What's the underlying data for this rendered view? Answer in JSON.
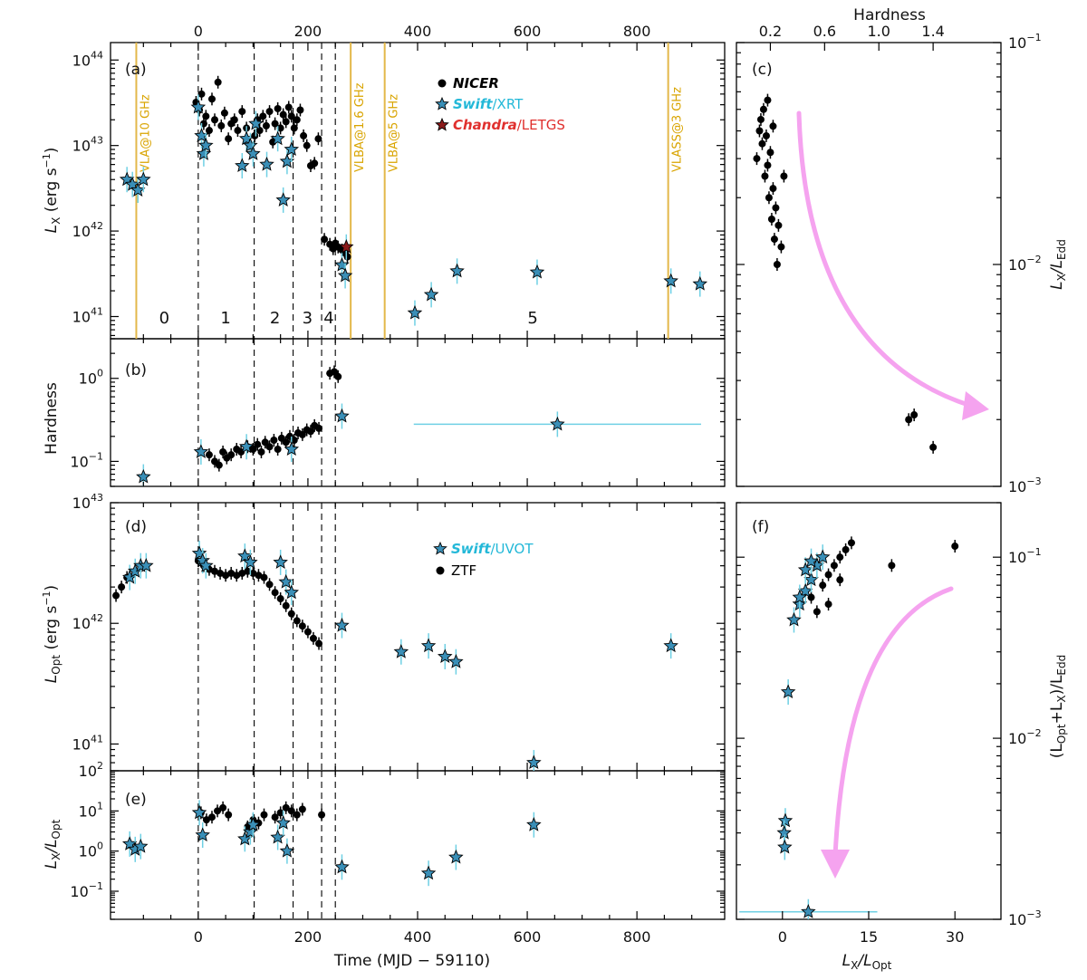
{
  "colors": {
    "nicer": "#000000",
    "swift": "#3a8fb7",
    "swift_err": "#6fd0e4",
    "chandra": "#8b1a1a",
    "radio": "#e3b84a",
    "arrow": "#f5a3ef",
    "legend_swift_text": "#23b8d8",
    "legend_chandra_text": "#e0302e"
  },
  "axes": {
    "time_label": "Time (MJD − 59110)",
    "hardness_top_label": "Hardness",
    "lx_label": "L",
    "lx_sub": "X",
    "lx_unit": " (erg s",
    "lx_unit_sup": "−1",
    "lx_unit_end": ")",
    "hard_label": "Hardness",
    "lopt_label": "L",
    "lopt_sub": "Opt",
    "lopt_unit": " (erg s",
    "lopt_unit_sup": "−1",
    "lopt_unit_end": ")",
    "ratio_label_num": "L",
    "ratio_label_num_sub": "X",
    "ratio_label_den": "/L",
    "ratio_label_den_sub": "Opt",
    "edd_label_num": "L",
    "edd_label_num_sub": "X",
    "edd_label_den": "/L",
    "edd_label_den_sub": "Edd",
    "tot_label_pre": "(L",
    "tot_label_sub1": "Opt",
    "tot_label_mid": "+L",
    "tot_label_sub2": "X",
    "tot_label_post": ")/L",
    "tot_label_sub3": "Edd",
    "f_x_label_num": "L",
    "f_x_label_num_sub": "X",
    "f_x_label_den": "/L",
    "f_x_label_den_sub": "Opt"
  },
  "legend_xray": {
    "nicer": "NICER",
    "swift_a": "Swift",
    "swift_b": "/XRT",
    "chandra_a": "Chandra",
    "chandra_b": "/LETGS"
  },
  "legend_opt": {
    "swift_a": "Swift",
    "swift_b": "/UVOT",
    "ztf": "ZTF"
  },
  "panels": {
    "a": "(a)",
    "b": "(b)",
    "c": "(c)",
    "d": "(d)",
    "e": "(e)",
    "f": "(f)"
  },
  "chart_data": [
    {
      "panel": "a",
      "type": "scatter",
      "ylabel": "L_X (erg s^-1)",
      "yscale": "log",
      "xlim": [
        -160,
        960
      ],
      "ylim": [
        5.5e+40,
        1.6e+44
      ],
      "top_axis": {
        "label": "Time (MJD − 59110)",
        "ticks": [
          0,
          200,
          400,
          600,
          800
        ]
      },
      "phase_boundaries": [
        0,
        102,
        173,
        225,
        250
      ],
      "phase_labels": [
        {
          "text": "0",
          "x": -62
        },
        {
          "text": "1",
          "x": 50
        },
        {
          "text": "2",
          "x": 140
        },
        {
          "text": "3",
          "x": 199
        },
        {
          "text": "4",
          "x": 238
        },
        {
          "text": "5",
          "x": 610
        }
      ],
      "radio_lines": [
        {
          "label": "VLA@10 GHz",
          "x": -113
        },
        {
          "label": "VLBA@1.6 GHz",
          "x": 278
        },
        {
          "label": "VLBA@5 GHz",
          "x": 340
        },
        {
          "label": "VLASS@3 GHz",
          "x": 857
        }
      ],
      "series": [
        {
          "name": "NICER",
          "marker": "circle",
          "x": [
            -4,
            2,
            6,
            10,
            14,
            20,
            25,
            30,
            36,
            42,
            48,
            55,
            60,
            66,
            72,
            80,
            88,
            95,
            103,
            108,
            112,
            118,
            124,
            130,
            136,
            140,
            145,
            150,
            155,
            160,
            165,
            170,
            175,
            180,
            186,
            192,
            198,
            205,
            212,
            219,
            230,
            240,
            246,
            250,
            255,
            262,
            268,
            272
          ],
          "y": [
            3.2e+43,
            2.6e+43,
            4e+43,
            1.8e+43,
            2.2e+43,
            1.5e+43,
            3.5e+43,
            2e+43,
            5.5e+43,
            1.7e+43,
            2.4e+43,
            1.2e+43,
            1.8e+43,
            2e+43,
            1.5e+43,
            2.5e+43,
            1.6e+43,
            1e+43,
            1.3e+43,
            2e+43,
            1.5e+43,
            2.2e+43,
            1.7e+43,
            2.5e+43,
            1.1e+43,
            1.8e+43,
            2.7e+43,
            1.6e+43,
            2.3e+43,
            1.9e+43,
            2.8e+43,
            2.2e+43,
            1.6e+43,
            2e+43,
            2.6e+43,
            1.3e+43,
            1e+43,
            5.8e+42,
            6.2e+42,
            1.2e+43,
            8e+41,
            7e+41,
            6.2e+41,
            7.2e+41,
            6.5e+41,
            6e+41,
            5.5e+41,
            5e+41
          ]
        },
        {
          "name": "Swift/XRT",
          "marker": "star",
          "x": [
            -130,
            -120,
            -110,
            -100,
            0,
            6,
            10,
            14,
            80,
            88,
            95,
            100,
            105,
            125,
            145,
            155,
            162,
            170,
            262,
            268,
            395,
            425,
            472,
            618,
            862,
            915
          ],
          "y": [
            4e+42,
            3.5e+42,
            3e+42,
            4e+42,
            2.8e+43,
            1.3e+43,
            8e+42,
            1e+43,
            5.8e+42,
            1.2e+43,
            1e+43,
            8e+42,
            1.8e+43,
            6e+42,
            1.2e+43,
            2.3e+42,
            6.5e+42,
            9e+42,
            4e+41,
            3e+41,
            1.1e+41,
            1.8e+41,
            3.4e+41,
            3.3e+41,
            2.6e+41,
            2.4e+41
          ]
        },
        {
          "name": "Chandra/LETGS",
          "marker": "star",
          "x": [
            270
          ],
          "y": [
            6.5e+41
          ]
        }
      ]
    },
    {
      "panel": "b",
      "type": "scatter",
      "ylabel": "Hardness",
      "yscale": "log",
      "xlim": [
        -160,
        960
      ],
      "ylim": [
        0.05,
        3.0
      ],
      "series": [
        {
          "name": "NICER",
          "marker": "circle",
          "x": [
            20,
            30,
            38,
            45,
            52,
            60,
            70,
            78,
            90,
            100,
            108,
            115,
            122,
            130,
            138,
            145,
            152,
            160,
            167,
            175,
            182,
            190,
            198,
            205,
            212,
            220,
            240,
            248,
            255
          ],
          "y": [
            0.12,
            0.1,
            0.09,
            0.13,
            0.11,
            0.12,
            0.14,
            0.13,
            0.15,
            0.14,
            0.16,
            0.13,
            0.17,
            0.15,
            0.18,
            0.14,
            0.19,
            0.17,
            0.2,
            0.18,
            0.22,
            0.21,
            0.24,
            0.23,
            0.27,
            0.25,
            1.15,
            1.2,
            1.05
          ]
        },
        {
          "name": "Swift/XRT",
          "marker": "star",
          "x": [
            -100,
            5,
            88,
            170,
            262,
            655
          ],
          "y": [
            0.065,
            0.13,
            0.15,
            0.14,
            0.35,
            0.28
          ],
          "xerr": [
            0,
            0,
            0,
            0,
            0,
            262
          ]
        }
      ]
    },
    {
      "panel": "c",
      "type": "scatter",
      "top_axis": {
        "label": "Hardness",
        "ticks": [
          0.2,
          0.6,
          1.0,
          1.4
        ]
      },
      "xlim": [
        -0.05,
        1.9
      ],
      "ylabel": "L_X/L_Edd",
      "yscale": "log",
      "ylim": [
        0.001,
        0.1
      ],
      "series": [
        {
          "name": "NICER",
          "marker": "circle",
          "x": [
            0.1,
            0.12,
            0.14,
            0.16,
            0.18,
            0.2,
            0.22,
            0.24,
            0.26,
            0.28,
            0.13,
            0.15,
            0.17,
            0.19,
            0.21,
            0.23,
            0.25,
            0.18,
            0.22,
            0.3,
            1.22,
            1.26,
            1.4
          ],
          "y": [
            0.03,
            0.04,
            0.035,
            0.025,
            0.028,
            0.032,
            0.022,
            0.018,
            0.015,
            0.012,
            0.045,
            0.05,
            0.038,
            0.02,
            0.016,
            0.013,
            0.01,
            0.055,
            0.042,
            0.025,
            0.002,
            0.0021,
            0.0015
          ]
        }
      ]
    },
    {
      "panel": "d",
      "type": "scatter",
      "ylabel": "L_Opt (erg s^-1)",
      "yscale": "log",
      "xlim": [
        -160,
        960
      ],
      "ylim": [
        6e+40,
        1e+43
      ],
      "phase_boundaries": [
        0,
        102,
        173,
        225,
        250
      ],
      "series": [
        {
          "name": "ZTF",
          "marker": "circle",
          "x": [
            -150,
            -140,
            -130,
            0,
            10,
            20,
            30,
            40,
            50,
            60,
            70,
            80,
            90,
            100,
            110,
            120,
            130,
            140,
            150,
            160,
            170,
            180,
            190,
            200,
            210,
            220
          ],
          "y": [
            1.7e+42,
            2e+42,
            2.4e+42,
            3.3e+42,
            3e+42,
            2.8e+42,
            2.7e+42,
            2.6e+42,
            2.5e+42,
            2.6e+42,
            2.5e+42,
            2.6e+42,
            2.7e+42,
            2.6e+42,
            2.5e+42,
            2.4e+42,
            2.1e+42,
            1.8e+42,
            1.6e+42,
            1.4e+42,
            1.2e+42,
            1.05e+42,
            9.5e+41,
            8.5e+41,
            7.5e+41,
            6.8e+41
          ]
        },
        {
          "name": "Swift/UVOT",
          "marker": "star",
          "x": [
            -125,
            -115,
            -105,
            -95,
            2,
            8,
            14,
            85,
            95,
            150,
            160,
            170,
            262,
            370,
            420,
            450,
            470,
            612,
            862
          ],
          "y": [
            2.4e+42,
            2.7e+42,
            3e+42,
            3e+42,
            3.8e+42,
            3.3e+42,
            3e+42,
            3.6e+42,
            3.2e+42,
            3.2e+42,
            2.2e+42,
            1.8e+42,
            9.6e+41,
            5.8e+41,
            6.5e+41,
            5.3e+41,
            4.8e+41,
            7e+40,
            6.5e+41
          ]
        }
      ]
    },
    {
      "panel": "e",
      "type": "scatter",
      "xlabel": "Time (MJD − 59110)",
      "ylabel": "L_X/L_Opt",
      "yscale": "log",
      "xlim": [
        -160,
        960
      ],
      "xticks": [
        0,
        200,
        400,
        600,
        800
      ],
      "ylim": [
        0.02,
        100
      ],
      "phase_boundaries": [
        0,
        102,
        173,
        225,
        250
      ],
      "series": [
        {
          "name": "NICER",
          "marker": "circle",
          "x": [
            5,
            15,
            25,
            35,
            45,
            55,
            90,
            100,
            110,
            120,
            140,
            150,
            160,
            170,
            180,
            190,
            225
          ],
          "y": [
            9,
            6,
            7,
            10,
            12,
            8,
            4,
            6,
            5,
            8,
            7,
            9,
            12,
            10,
            8,
            11,
            8
          ]
        },
        {
          "name": "Swift/UVOT",
          "marker": "star",
          "x": [
            -125,
            -115,
            -105,
            2,
            8,
            85,
            95,
            100,
            145,
            155,
            162,
            262,
            420,
            470,
            612
          ],
          "y": [
            1.5,
            1.1,
            1.3,
            9.0,
            2.5,
            2.0,
            3.0,
            4.5,
            2.2,
            5.0,
            1.0,
            0.4,
            0.28,
            0.7,
            4.5
          ]
        }
      ]
    },
    {
      "panel": "f",
      "type": "scatter",
      "xlabel": "L_X/L_Opt",
      "xlim": [
        -8,
        38
      ],
      "xticks": [
        0,
        15,
        30
      ],
      "ylabel": "(L_Opt+L_X)/L_Edd",
      "yscale": "log",
      "ylim": [
        0.001,
        0.2
      ],
      "series": [
        {
          "name": "ZTF",
          "marker": "circle",
          "x": [
            5,
            7,
            8,
            9,
            10,
            11,
            12,
            6,
            8,
            10,
            19,
            30
          ],
          "y": [
            0.06,
            0.07,
            0.08,
            0.09,
            0.1,
            0.11,
            0.12,
            0.05,
            0.055,
            0.075,
            0.09,
            0.115
          ]
        },
        {
          "name": "Swift/UVOT",
          "marker": "star",
          "x": [
            2,
            3,
            4,
            5,
            6,
            7,
            3,
            4,
            5,
            1,
            0.5,
            0.3,
            0.4,
            4.5
          ],
          "y": [
            0.045,
            0.055,
            0.065,
            0.075,
            0.09,
            0.1,
            0.06,
            0.085,
            0.095,
            0.018,
            0.0035,
            0.003,
            0.0025,
            0.0011
          ],
          "xerr": [
            0,
            0,
            0,
            0,
            0,
            0,
            0,
            0,
            0,
            0,
            0,
            0,
            0,
            12
          ]
        }
      ]
    }
  ]
}
